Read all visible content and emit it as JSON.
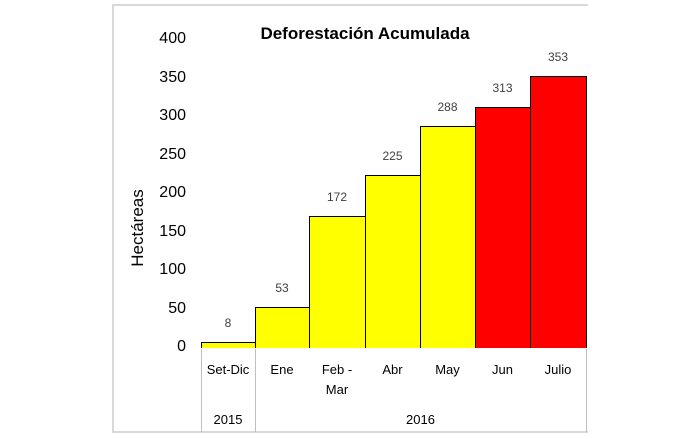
{
  "chart_data": {
    "type": "bar",
    "title": "Deforestación Acumulada",
    "xlabel": "",
    "ylabel": "Hectáreas",
    "ylim": [
      0,
      400
    ],
    "yticks": [
      0,
      50,
      100,
      150,
      200,
      250,
      300,
      350,
      400
    ],
    "grid": false,
    "legend": null,
    "categories": [
      "Set-Dic",
      "Ene",
      "Feb - Mar",
      "Abr",
      "May",
      "Jun",
      "Julio"
    ],
    "category_groups": [
      {
        "label": "2015",
        "categories": [
          "Set-Dic"
        ]
      },
      {
        "label": "2016",
        "categories": [
          "Ene",
          "Feb - Mar",
          "Abr",
          "May",
          "Jun",
          "Julio"
        ]
      }
    ],
    "values": [
      8,
      53,
      172,
      225,
      288,
      313,
      353
    ],
    "bar_colors": [
      "#ffff00",
      "#ffff00",
      "#ffff00",
      "#ffff00",
      "#ffff00",
      "#ff0000",
      "#ff0000"
    ],
    "data_labels": [
      "8",
      "53",
      "172",
      "225",
      "288",
      "313",
      "353"
    ]
  },
  "labels": {
    "title": "Deforestación Acumulada",
    "ylabel": "Hectáreas",
    "yticks": [
      "0",
      "50",
      "100",
      "150",
      "200",
      "250",
      "300",
      "350",
      "400"
    ],
    "categories": [
      "Set-Dic",
      "Ene",
      "Feb -\nMar",
      "Abr",
      "May",
      "Jun",
      "Julio"
    ],
    "years": [
      "2015",
      "2016"
    ]
  },
  "colors": {
    "yellow": "#ffff00",
    "red": "#ff0000",
    "outline": "#000000"
  }
}
